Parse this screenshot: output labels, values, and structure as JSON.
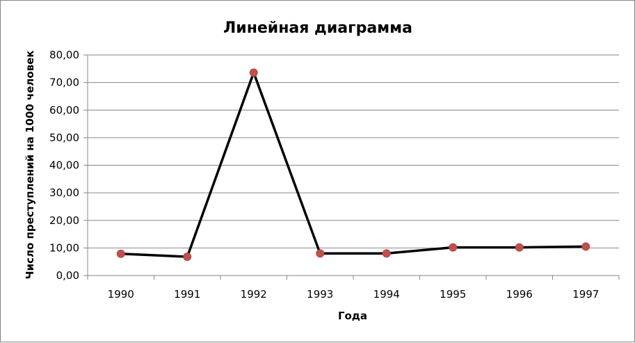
{
  "chart_data": {
    "type": "line",
    "title": "Линейная диаграмма",
    "xlabel": "Года",
    "ylabel": "Число преступлений на 1000 человек",
    "categories": [
      "1990",
      "1991",
      "1992",
      "1993",
      "1994",
      "1995",
      "1996",
      "1997"
    ],
    "series": [
      {
        "values": [
          7.9,
          6.8,
          73.6,
          8.0,
          8.0,
          10.2,
          10.2,
          10.5
        ],
        "line_color": "#000000",
        "marker_color": "#c0504d"
      }
    ],
    "ylim": [
      0,
      80
    ],
    "ytick_step": 10,
    "ytick_labels": [
      "0,00",
      "10,00",
      "20,00",
      "30,00",
      "40,00",
      "50,00",
      "60,00",
      "70,00",
      "80,00"
    ],
    "grid": "horizontal",
    "legend": "none",
    "grid_color": "#868686"
  }
}
